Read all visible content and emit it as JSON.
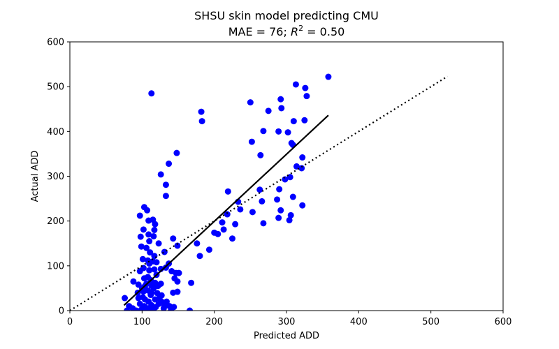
{
  "chart_data": {
    "type": "scatter",
    "title": "SHSU skin model predicting CMU",
    "subtitle": {
      "mae_prefix": "MAE = 76; ",
      "r_symbol": "R",
      "r_exponent": "2",
      "r_suffix": " = 0.50"
    },
    "xlabel": "Predicted ADD",
    "ylabel": "Actual ADD",
    "xlim": [
      0,
      600
    ],
    "ylim": [
      0,
      600
    ],
    "xticks": [
      "0",
      "100",
      "200",
      "300",
      "400",
      "500",
      "600"
    ],
    "yticks": [
      "0",
      "100",
      "200",
      "300",
      "400",
      "500",
      "600"
    ],
    "grid": false,
    "legend": "none",
    "colors": {
      "points": "#0000ff",
      "fit_line": "#000000",
      "identity_line": "#000000"
    },
    "fit_line": {
      "x": [
        75,
        358
      ],
      "y": [
        12,
        436
      ]
    },
    "identity_line": {
      "x": [
        0,
        523
      ],
      "y": [
        0,
        523
      ]
    },
    "series": [
      {
        "marker": "filled-circle",
        "points": [
          [
            113,
            485
          ],
          [
            358,
            522
          ],
          [
            313,
            505
          ],
          [
            326,
            497
          ],
          [
            328,
            479
          ],
          [
            250,
            465
          ],
          [
            292,
            472
          ],
          [
            182,
            444
          ],
          [
            275,
            446
          ],
          [
            293,
            452
          ],
          [
            183,
            423
          ],
          [
            310,
            423
          ],
          [
            325,
            425
          ],
          [
            268,
            401
          ],
          [
            289,
            400
          ],
          [
            302,
            398
          ],
          [
            252,
            377
          ],
          [
            307,
            374
          ],
          [
            309,
            370
          ],
          [
            148,
            352
          ],
          [
            264,
            347
          ],
          [
            322,
            342
          ],
          [
            137,
            328
          ],
          [
            314,
            322
          ],
          [
            321,
            318
          ],
          [
            126,
            304
          ],
          [
            305,
            298
          ],
          [
            298,
            293
          ],
          [
            133,
            281
          ],
          [
            219,
            266
          ],
          [
            263,
            270
          ],
          [
            290,
            271
          ],
          [
            133,
            256
          ],
          [
            309,
            254
          ],
          [
            233,
            243
          ],
          [
            266,
            244
          ],
          [
            287,
            248
          ],
          [
            322,
            235
          ],
          [
            236,
            226
          ],
          [
            218,
            215
          ],
          [
            253,
            220
          ],
          [
            306,
            213
          ],
          [
            292,
            224
          ],
          [
            289,
            207
          ],
          [
            304,
            202
          ],
          [
            211,
            197
          ],
          [
            229,
            193
          ],
          [
            268,
            195
          ],
          [
            213,
            181
          ],
          [
            200,
            174
          ],
          [
            205,
            171
          ],
          [
            225,
            161
          ],
          [
            176,
            150
          ],
          [
            193,
            136
          ],
          [
            180,
            122
          ],
          [
            149,
            145
          ],
          [
            143,
            161
          ],
          [
            131,
            131
          ],
          [
            168,
            62
          ],
          [
            166,
            0
          ],
          [
            97,
            212
          ],
          [
            103,
            231
          ],
          [
            107,
            224
          ],
          [
            109,
            201
          ],
          [
            115,
            203
          ],
          [
            118,
            193
          ],
          [
            117,
            180
          ],
          [
            102,
            181
          ],
          [
            109,
            170
          ],
          [
            116,
            166
          ],
          [
            110,
            155
          ],
          [
            98,
            165
          ],
          [
            99,
            143
          ],
          [
            106,
            140
          ],
          [
            111,
            130
          ],
          [
            123,
            150
          ],
          [
            101,
            115
          ],
          [
            108,
            112
          ],
          [
            115,
            110
          ],
          [
            117,
            122
          ],
          [
            120,
            108
          ],
          [
            102,
            95
          ],
          [
            110,
            90
          ],
          [
            117,
            92
          ],
          [
            126,
            93
          ],
          [
            133,
            96
          ],
          [
            137,
            105
          ],
          [
            141,
            88
          ],
          [
            147,
            84
          ],
          [
            151,
            84
          ],
          [
            145,
            72
          ],
          [
            149,
            65
          ],
          [
            143,
            40
          ],
          [
            149,
            42
          ],
          [
            108,
            75
          ],
          [
            112,
            68
          ],
          [
            118,
            62
          ],
          [
            104,
            55
          ],
          [
            113,
            56
          ],
          [
            122,
            55
          ],
          [
            95,
            58
          ],
          [
            102,
            43
          ],
          [
            108,
            45
          ],
          [
            113,
            40
          ],
          [
            121,
            39
          ],
          [
            127,
            34
          ],
          [
            134,
            20
          ],
          [
            138,
            10
          ],
          [
            130,
            5
          ],
          [
            144,
            8
          ],
          [
            101,
            30
          ],
          [
            104,
            25
          ],
          [
            109,
            20
          ],
          [
            95,
            28
          ],
          [
            97,
            15
          ],
          [
            103,
            10
          ],
          [
            108,
            5
          ],
          [
            113,
            12
          ],
          [
            119,
            8
          ],
          [
            88,
            65
          ],
          [
            76,
            28
          ],
          [
            82,
            10
          ],
          [
            87,
            5
          ],
          [
            92,
            0
          ],
          [
            99,
            2
          ],
          [
            105,
            0
          ],
          [
            111,
            3
          ],
          [
            116,
            0
          ],
          [
            123,
            15
          ],
          [
            127,
            20
          ],
          [
            94,
            40
          ],
          [
            100,
            50
          ],
          [
            106,
            60
          ],
          [
            112,
            35
          ],
          [
            118,
            25
          ],
          [
            124,
            28
          ],
          [
            131,
            10
          ],
          [
            110,
            105
          ],
          [
            103,
            72
          ],
          [
            120,
            80
          ],
          [
            126,
            60
          ],
          [
            97,
            88
          ],
          [
            116,
            50
          ],
          [
            79,
            0
          ],
          [
            140,
            0
          ]
        ]
      }
    ]
  }
}
